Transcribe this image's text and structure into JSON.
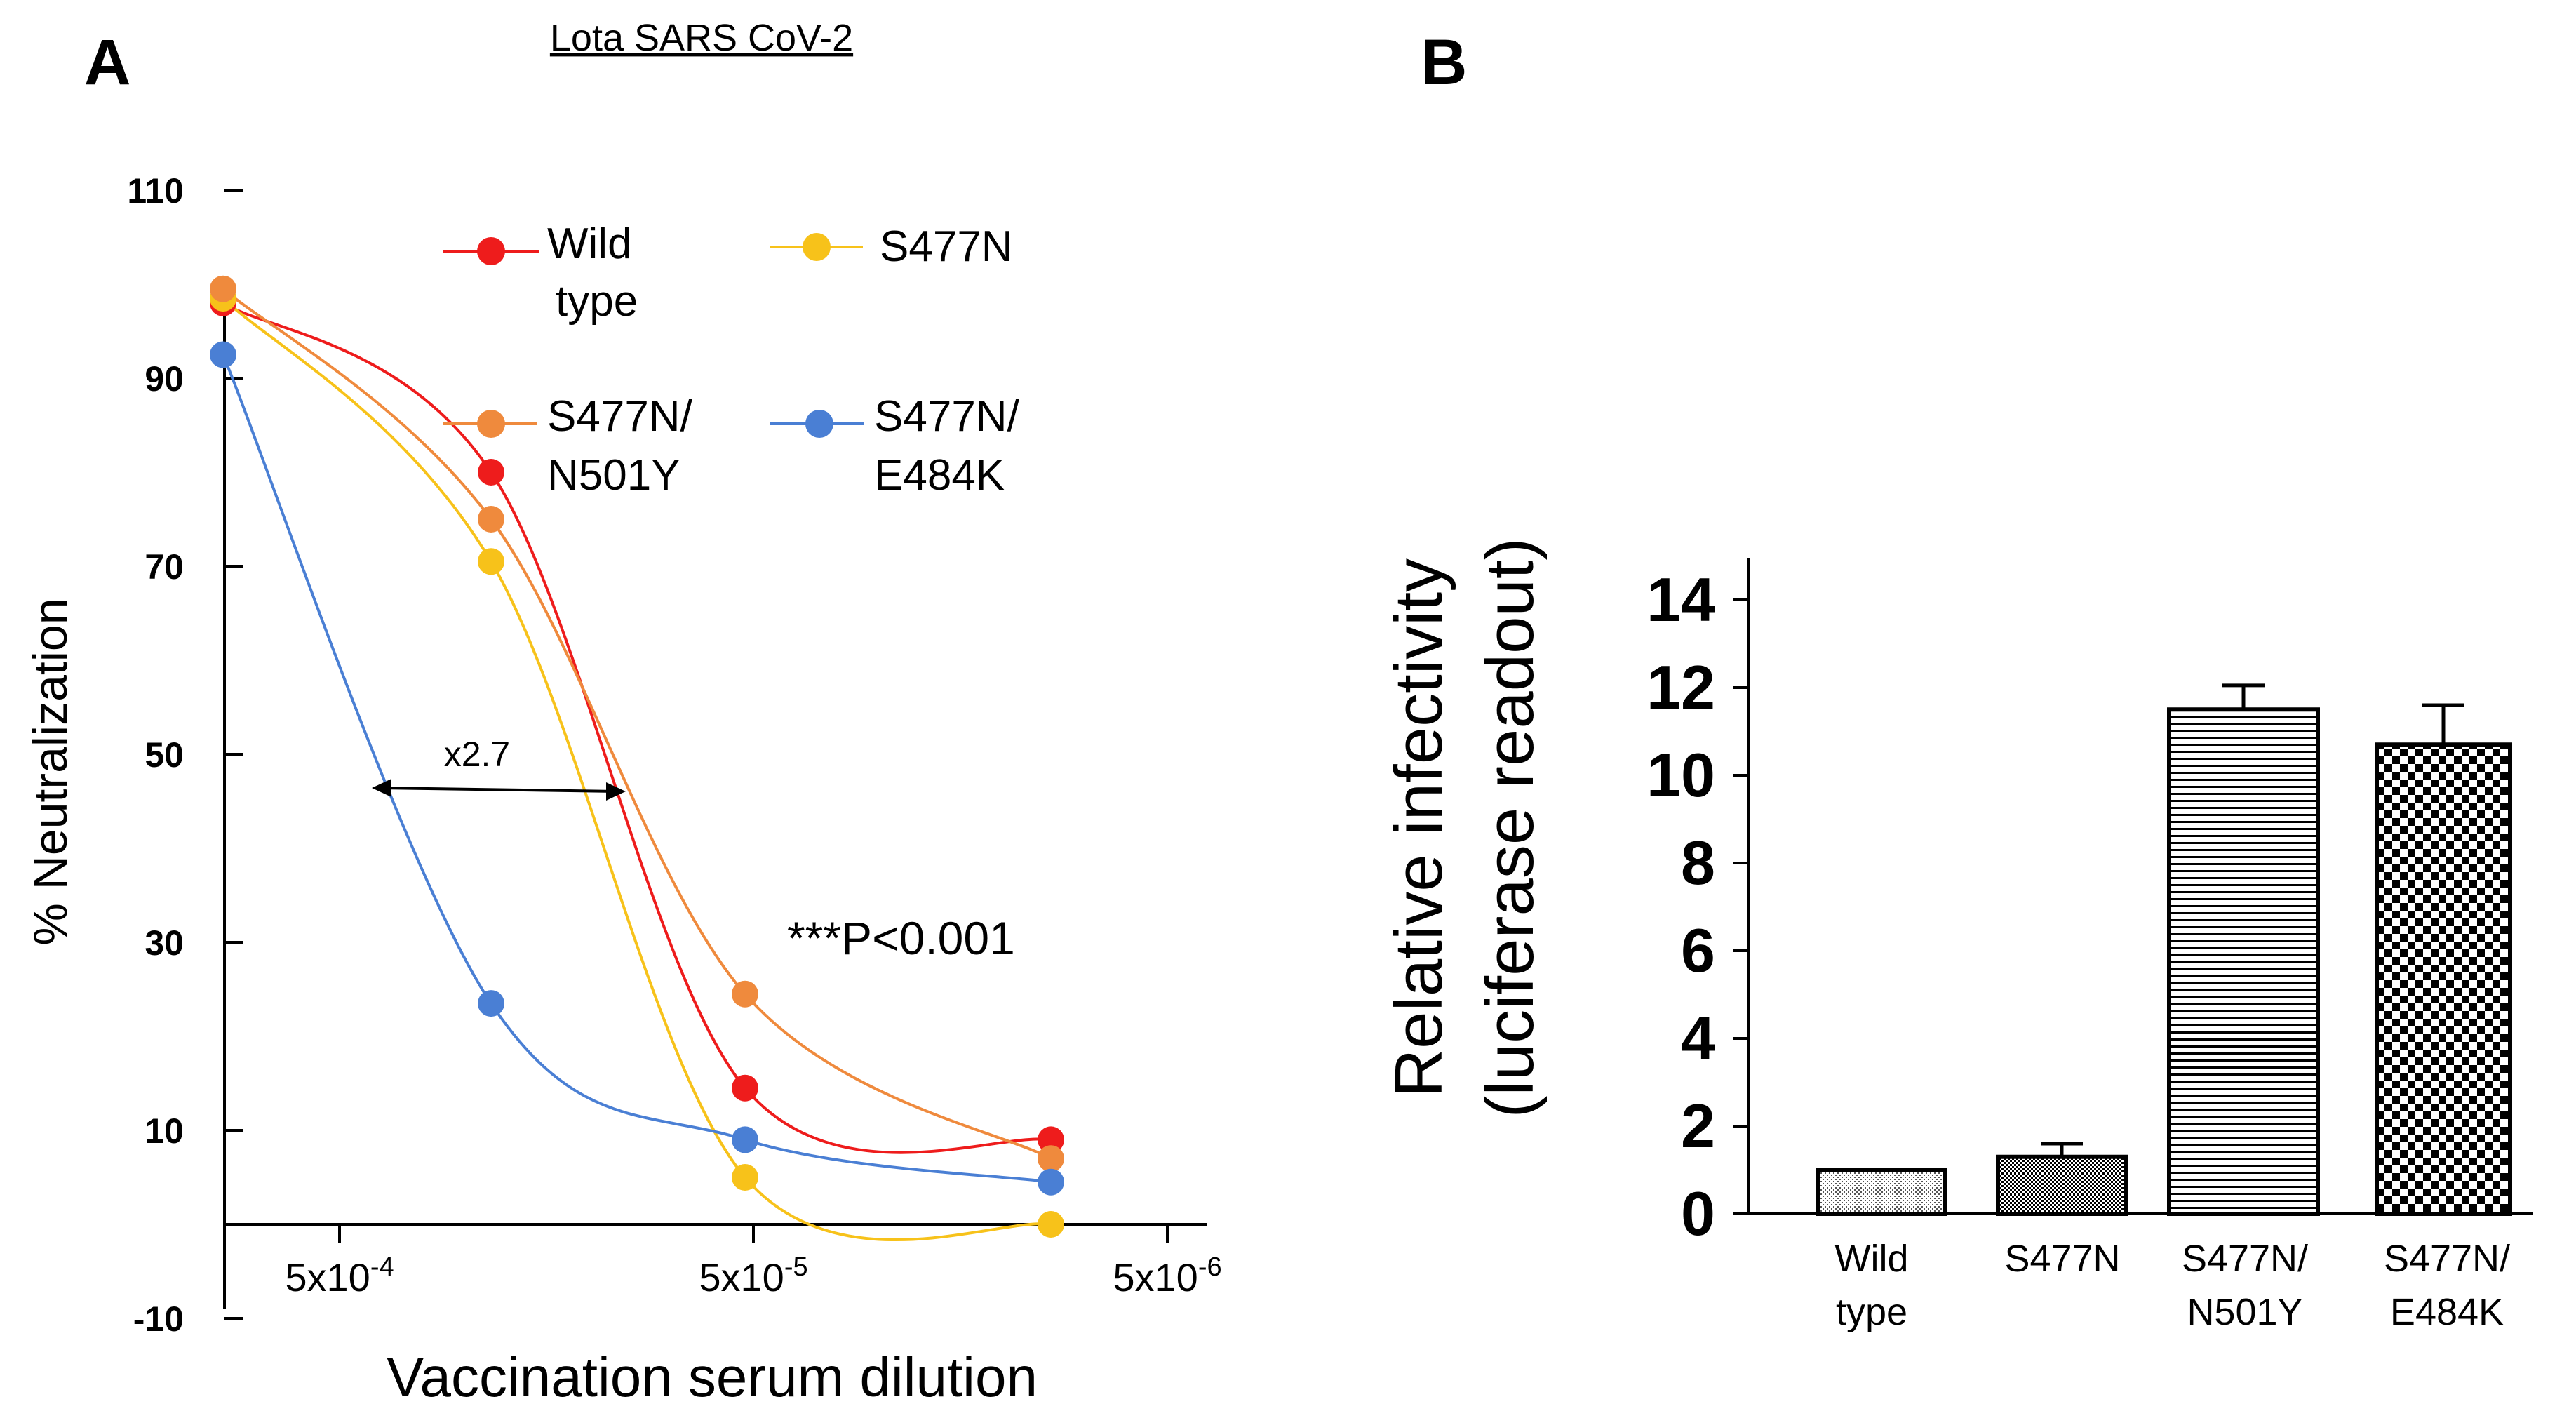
{
  "panel_a": {
    "letter": "A",
    "subtitle": "Lota SARS CoV-2",
    "ylabel": "% Neutralization",
    "xlabel": "Vaccination serum dilution",
    "yticks": [
      "110",
      "90",
      "70",
      "50",
      "30",
      "10",
      "-10"
    ],
    "xticks": [
      {
        "base": "5x10",
        "exp": "-4"
      },
      {
        "base": "5x10",
        "exp": "-5"
      },
      {
        "base": "5x10",
        "exp": "-6"
      }
    ],
    "annotation_fold": "x2.7",
    "annotation_p": "***P<0.001",
    "legend": {
      "wild_line1": "Wild",
      "wild_line2": "type",
      "s477n": "S477N",
      "n501y_line1": "S477N/",
      "n501y_line2": "N501Y",
      "e484k_line1": "S477N/",
      "e484k_line2": "E484K"
    }
  },
  "panel_b": {
    "letter": "B",
    "ylabel_line1": "Relative infectivity",
    "ylabel_line2": "(luciferase readout)",
    "yticks": [
      "14",
      "12",
      "10",
      "8",
      "6",
      "4",
      "2",
      "0"
    ],
    "xlabels": [
      {
        "line1": "Wild",
        "line2": "type"
      },
      {
        "line1": "S477N",
        "line2": ""
      },
      {
        "line1": "S477N/",
        "line2": "N501Y"
      },
      {
        "line1": "S477N/",
        "line2": "E484K"
      }
    ]
  },
  "colors": {
    "wild_type": "#ee1c1c",
    "s477n": "#f7c21a",
    "s477n_n501y": "#ef8a3d",
    "s477n_e484k": "#4a7fd4"
  },
  "chart_data": [
    {
      "type": "line",
      "title": "Lota SARS CoV-2",
      "xlabel": "Vaccination serum dilution",
      "ylabel": "% Neutralization",
      "ylim": [
        -10,
        110
      ],
      "x": [
        0,
        1,
        2,
        3
      ],
      "series": [
        {
          "name": "Wild type",
          "values": [
            98,
            80,
            14.5,
            9
          ]
        },
        {
          "name": "S477N",
          "values": [
            98.5,
            70.5,
            5,
            0
          ]
        },
        {
          "name": "S477N/N501Y",
          "values": [
            99.5,
            75,
            24.5,
            7
          ]
        },
        {
          "name": "S477N/E484K",
          "values": [
            92.5,
            23.5,
            9,
            4.5
          ]
        }
      ]
    },
    {
      "type": "bar",
      "title": "",
      "xlabel": "",
      "ylabel": "Relative infectivity (luciferase readout)",
      "ylim": [
        0,
        15
      ],
      "categories": [
        "Wild type",
        "S477N",
        "S477N/N501Y",
        "S477N/E484K"
      ],
      "values": [
        1.0,
        1.3,
        11.5,
        10.7
      ],
      "errors": [
        0,
        0.3,
        0.55,
        0.9
      ]
    }
  ]
}
